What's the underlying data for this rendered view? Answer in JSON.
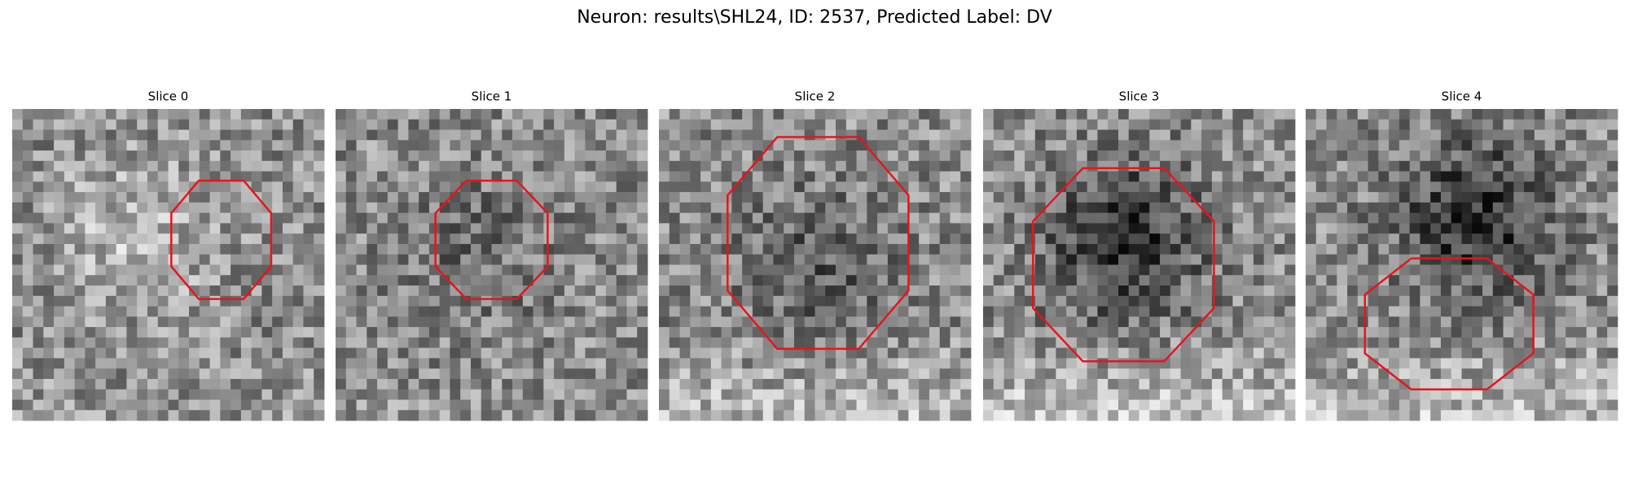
{
  "title": "Neuron: results\\SHL24, ID: 2537, Predicted Label: DV",
  "panels": [
    {
      "title": "Slice 0"
    },
    {
      "title": "Slice 1"
    },
    {
      "title": "Slice 2"
    },
    {
      "title": "Slice 3"
    },
    {
      "title": "Slice 4"
    }
  ]
}
